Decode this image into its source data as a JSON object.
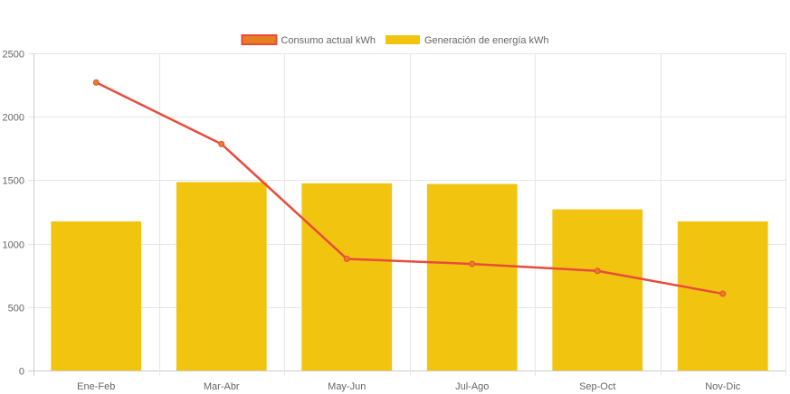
{
  "chart_data": {
    "type": "bar",
    "categories": [
      "Ene-Feb",
      "Mar-Abr",
      "May-Jun",
      "Jul-Ago",
      "Sep-Oct",
      "Nov-Dic"
    ],
    "series": [
      {
        "name": "Consumo actual kWh",
        "kind": "line",
        "color": "#e74c3c",
        "point_color": "#e67e22",
        "values": [
          2270,
          1785,
          880,
          840,
          785,
          605
        ]
      },
      {
        "name": "Generación de energía kWh",
        "kind": "bar",
        "color": "#f1c40f",
        "values": [
          1175,
          1485,
          1475,
          1470,
          1270,
          1175
        ]
      }
    ],
    "ylim": [
      0,
      2500
    ],
    "yticks": [
      0,
      500,
      1000,
      1500,
      2000,
      2500
    ],
    "title": "",
    "xlabel": "",
    "ylabel": "",
    "legend": "top-center",
    "grid": true
  }
}
